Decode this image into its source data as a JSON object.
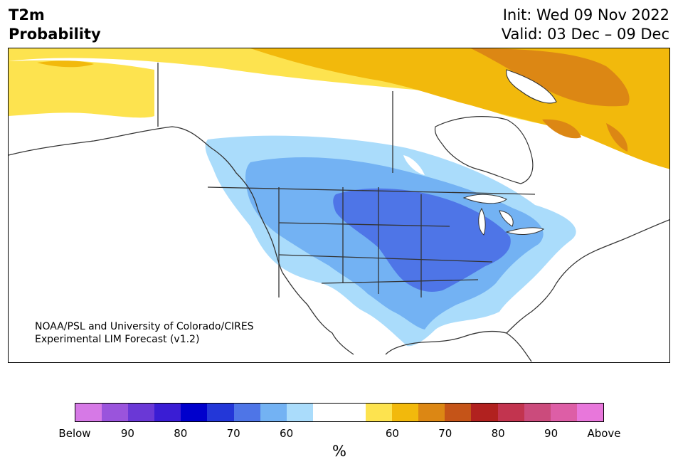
{
  "header": {
    "title_line1": "T2m",
    "title_line2": "Probability",
    "init": "Init: Wed 09 Nov 2022",
    "valid": "Valid: 03 Dec – 09 Dec"
  },
  "map": {
    "credit_line1": "NOAA/PSL and University of Colorado/CIRES",
    "credit_line2": "Experimental LIM Forecast (v1.2)",
    "region": "North America",
    "variable": "2-meter temperature probability",
    "colors": {
      "below_60": "#aadcfb",
      "below_70": "#73b2f3",
      "below_80": "#4e75e7",
      "above_60": "#fde34f",
      "above_70": "#f2b90c",
      "above_80": "#dc8714",
      "coastline": "#333333"
    }
  },
  "colorbar": {
    "unit": "%",
    "colors": [
      "#d679e6",
      "#9a54dc",
      "#6a38d6",
      "#3a1dd4",
      "#0000cc",
      "#2337d8",
      "#4e75e7",
      "#73b2f3",
      "#aadcfb",
      "#ffffff",
      "#ffffff",
      "#fde34f",
      "#f2b90c",
      "#dc8714",
      "#c55418",
      "#b1211f",
      "#c2344f",
      "#cb4b7c",
      "#dd5ea6",
      "#e877db"
    ],
    "ticks": [
      "Below",
      "90",
      "80",
      "70",
      "60",
      "60",
      "70",
      "80",
      "90",
      "Above"
    ]
  }
}
